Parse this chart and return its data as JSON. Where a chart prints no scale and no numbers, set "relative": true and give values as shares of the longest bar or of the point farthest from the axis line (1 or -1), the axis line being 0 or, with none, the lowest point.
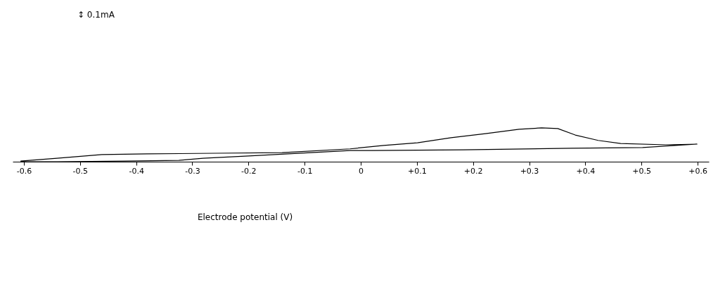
{
  "chart_data": {
    "type": "line",
    "relative": true,
    "xlabel": "Electrode potential (V)",
    "annotations": [
      "↕ 0.1mA"
    ],
    "xlim": [
      -0.62,
      0.62
    ],
    "xticks": [
      -0.6,
      -0.5,
      -0.4,
      -0.3,
      -0.2,
      -0.1,
      0,
      {
        "value": 0.1,
        "label": "+0.1"
      },
      {
        "value": 0.2,
        "label": "+0.2"
      },
      {
        "value": 0.3,
        "label": "+0.3"
      },
      {
        "value": 0.4,
        "label": "+0.4"
      },
      {
        "value": 0.5,
        "label": "+0.5"
      },
      {
        "value": 0.6,
        "label": "+0.6"
      }
    ],
    "grid": false,
    "marker": "none",
    "line_style": "solid",
    "series": [
      {
        "color": "#000000",
        "x": [
          -0.606,
          -0.541,
          -0.461,
          -0.381,
          -0.26,
          -0.14,
          -0.019,
          0.041,
          0.101,
          0.161,
          0.222,
          0.282,
          0.322,
          0.351,
          0.382,
          0.423,
          0.463,
          0.543,
          0.599,
          0.502,
          0.375,
          0.182,
          0.02,
          -0.019,
          -0.2,
          -0.281,
          -0.324,
          -0.42,
          -0.541,
          -0.606
        ],
        "values": [
          0.02,
          0.1,
          0.21,
          0.23,
          0.25,
          0.27,
          0.38,
          0.48,
          0.56,
          0.71,
          0.83,
          0.96,
          1,
          0.98,
          0.79,
          0.63,
          0.54,
          0.5,
          0.52,
          0.42,
          0.4,
          0.35,
          0.33,
          0.33,
          0.17,
          0.1,
          0.04,
          0.02,
          0,
          0
        ]
      }
    ]
  }
}
